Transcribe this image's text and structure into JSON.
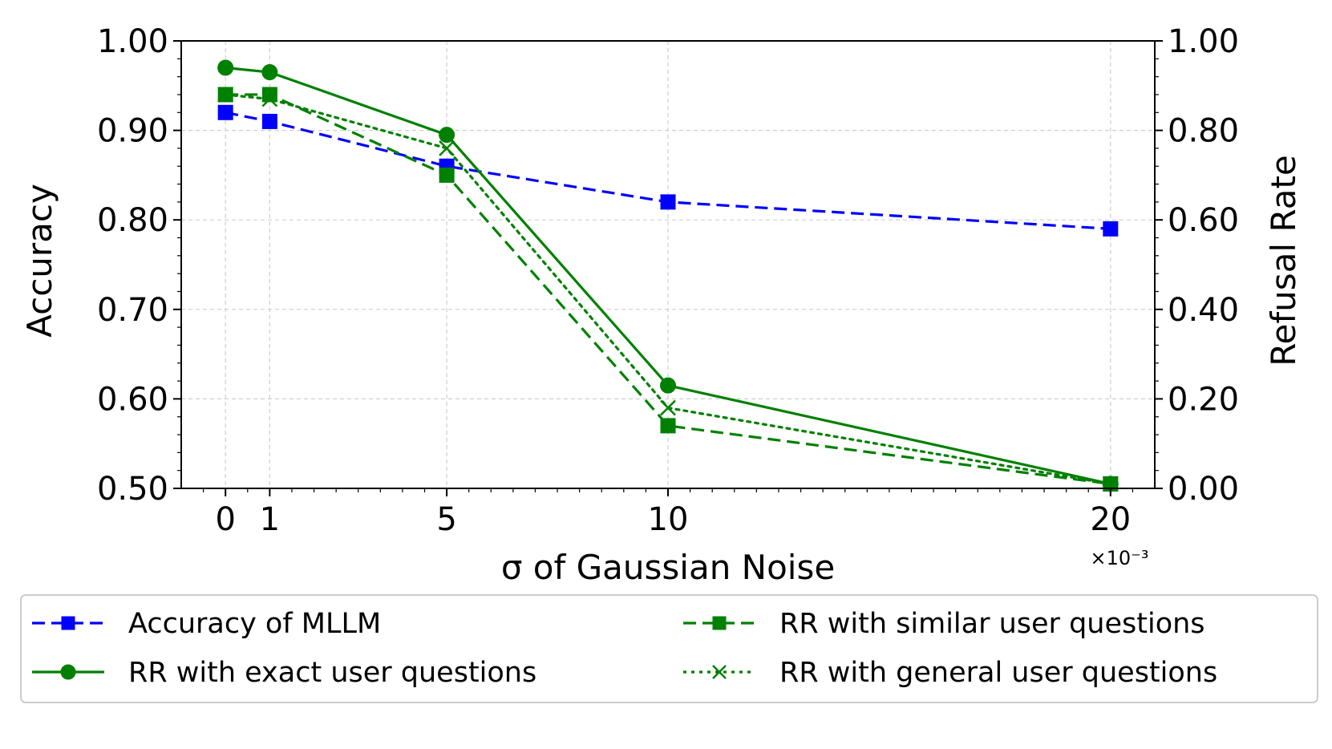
{
  "chart_data": {
    "type": "line",
    "xlabel": "σ of Gaussian Noise",
    "x_multiplier_label": "×10⁻³",
    "ylabel_left": "Accuracy",
    "ylabel_right": "Refusal Rate",
    "x": [
      0,
      1,
      5,
      10,
      20
    ],
    "x_tick_labels": [
      "0",
      "1",
      "5",
      "10",
      "20"
    ],
    "xlim": [
      -1,
      21
    ],
    "ylim_left": [
      0.5,
      1.0
    ],
    "ylim_right": [
      0.0,
      1.0
    ],
    "y_ticks_left": [
      0.5,
      0.6,
      0.7,
      0.8,
      0.9,
      1.0
    ],
    "y_tick_labels_left": [
      "0.50",
      "0.60",
      "0.70",
      "0.80",
      "0.90",
      "1.00"
    ],
    "y_ticks_right": [
      0.0,
      0.2,
      0.4,
      0.6,
      0.8,
      1.0
    ],
    "y_tick_labels_right": [
      "0.00",
      "0.20",
      "0.40",
      "0.60",
      "0.80",
      "1.00"
    ],
    "grid": true,
    "legend_position": "bottom",
    "series": [
      {
        "name": "Accuracy of MLLM",
        "axis": "left",
        "color": "#0000ff",
        "linestyle": "dashed",
        "marker": "square",
        "values": [
          0.92,
          0.91,
          0.86,
          0.82,
          0.79
        ]
      },
      {
        "name": "RR with exact user questions",
        "axis": "right",
        "color": "#008000",
        "linestyle": "solid",
        "marker": "circle",
        "values": [
          0.94,
          0.93,
          0.79,
          0.23,
          0.01
        ]
      },
      {
        "name": "RR with similar user questions",
        "axis": "right",
        "color": "#008000",
        "linestyle": "dashed",
        "marker": "square",
        "values": [
          0.88,
          0.88,
          0.7,
          0.14,
          0.01
        ]
      },
      {
        "name": "RR with general user questions",
        "axis": "right",
        "color": "#008000",
        "linestyle": "dotted",
        "marker": "x",
        "values": [
          0.88,
          0.87,
          0.76,
          0.18,
          0.01
        ]
      }
    ]
  }
}
